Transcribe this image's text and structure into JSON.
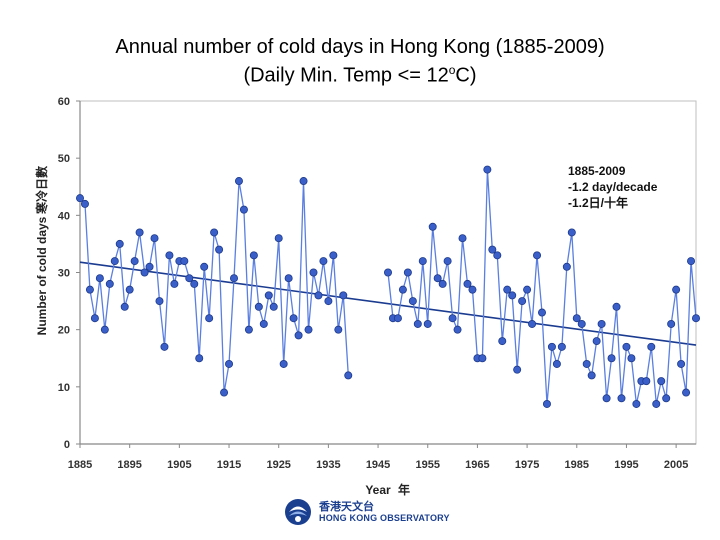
{
  "title": {
    "line1": "Annual number of cold days in Hong Kong (1885-2009)",
    "line2_pre": "(Daily Min. Temp <= 12",
    "line2_sup": "o",
    "line2_post": "C)"
  },
  "chart_data": {
    "type": "line",
    "title": "Annual number of cold days in Hong Kong (1885-2009) (Daily Min. Temp <= 12oC)",
    "xlabel": "Year",
    "xlabel_cn": "年",
    "ylabel": "Number of cold days",
    "ylabel_cn": "寒冷日數",
    "xlim": [
      1885,
      2009
    ],
    "ylim": [
      0,
      60
    ],
    "xticks": [
      "1885",
      "1895",
      "1905",
      "1915",
      "1925",
      "1935",
      "1945",
      "1955",
      "1965",
      "1975",
      "1985",
      "1995",
      "2005"
    ],
    "yticks": [
      "0",
      "10",
      "20",
      "30",
      "40",
      "50",
      "60"
    ],
    "grid": false,
    "series": [
      {
        "name": "Annual number of cold days",
        "color": "#3b5fc9",
        "segments": [
          {
            "x": [
              1885,
              1886,
              1887,
              1888,
              1889,
              1890,
              1891,
              1892,
              1893,
              1894,
              1895,
              1896,
              1897,
              1898,
              1899,
              1900,
              1901,
              1902,
              1903,
              1904,
              1905,
              1906,
              1907,
              1908,
              1909,
              1910,
              1911,
              1912,
              1913,
              1914,
              1915,
              1916,
              1917,
              1918,
              1919,
              1920,
              1921,
              1922,
              1923,
              1924,
              1925,
              1926,
              1927,
              1928,
              1929,
              1930,
              1931,
              1932,
              1933,
              1934,
              1935,
              1936,
              1937,
              1938,
              1939
            ],
            "y": [
              43,
              42,
              27,
              22,
              29,
              20,
              28,
              32,
              35,
              24,
              27,
              32,
              37,
              30,
              31,
              36,
              25,
              17,
              33,
              28,
              32,
              32,
              29,
              28,
              15,
              31,
              22,
              37,
              34,
              9,
              14,
              29,
              46,
              41,
              20,
              33,
              24,
              21,
              26,
              24,
              36,
              14,
              29,
              22,
              19,
              46,
              20,
              30,
              26,
              32,
              25,
              33,
              20,
              26,
              12
            ]
          },
          {
            "x": [
              1947,
              1948,
              1949,
              1950,
              1951,
              1952,
              1953,
              1954,
              1955,
              1956,
              1957,
              1958,
              1959,
              1960,
              1961,
              1962,
              1963,
              1964,
              1965,
              1966,
              1967,
              1968,
              1969,
              1970,
              1971,
              1972,
              1973,
              1974,
              1975,
              1976,
              1977,
              1978,
              1979,
              1980,
              1981,
              1982,
              1983,
              1984,
              1985,
              1986,
              1987,
              1988,
              1989,
              1990,
              1991,
              1992,
              1993,
              1994,
              1995,
              1996,
              1997,
              1998,
              1999,
              2000,
              2001,
              2002,
              2003,
              2004,
              2005,
              2006,
              2007,
              2008,
              2009
            ],
            "y": [
              30,
              22,
              22,
              27,
              30,
              25,
              21,
              32,
              21,
              38,
              29,
              28,
              32,
              22,
              20,
              36,
              28,
              27,
              15,
              15,
              48,
              34,
              33,
              18,
              27,
              26,
              13,
              25,
              27,
              21,
              33,
              23,
              7,
              17,
              14,
              17,
              31,
              37,
              22,
              21,
              14,
              12,
              18,
              21,
              8,
              15,
              24,
              8,
              17,
              15,
              7,
              11,
              11,
              17,
              7,
              11,
              8,
              21,
              27,
              14,
              9,
              32,
              22
            ]
          }
        ]
      },
      {
        "name": "Linear trend (-1.2 day/decade)",
        "color": "#1a3b8f",
        "x": [
          1885,
          2009
        ],
        "y": [
          31.8,
          17.3
        ]
      }
    ],
    "annotations": [
      "1885-2009",
      "-1.2 day/decade",
      "-1.2日/十年"
    ]
  },
  "logo": {
    "name_cn": "香港天文台",
    "name_en": "HONG KONG OBSERVATORY"
  }
}
